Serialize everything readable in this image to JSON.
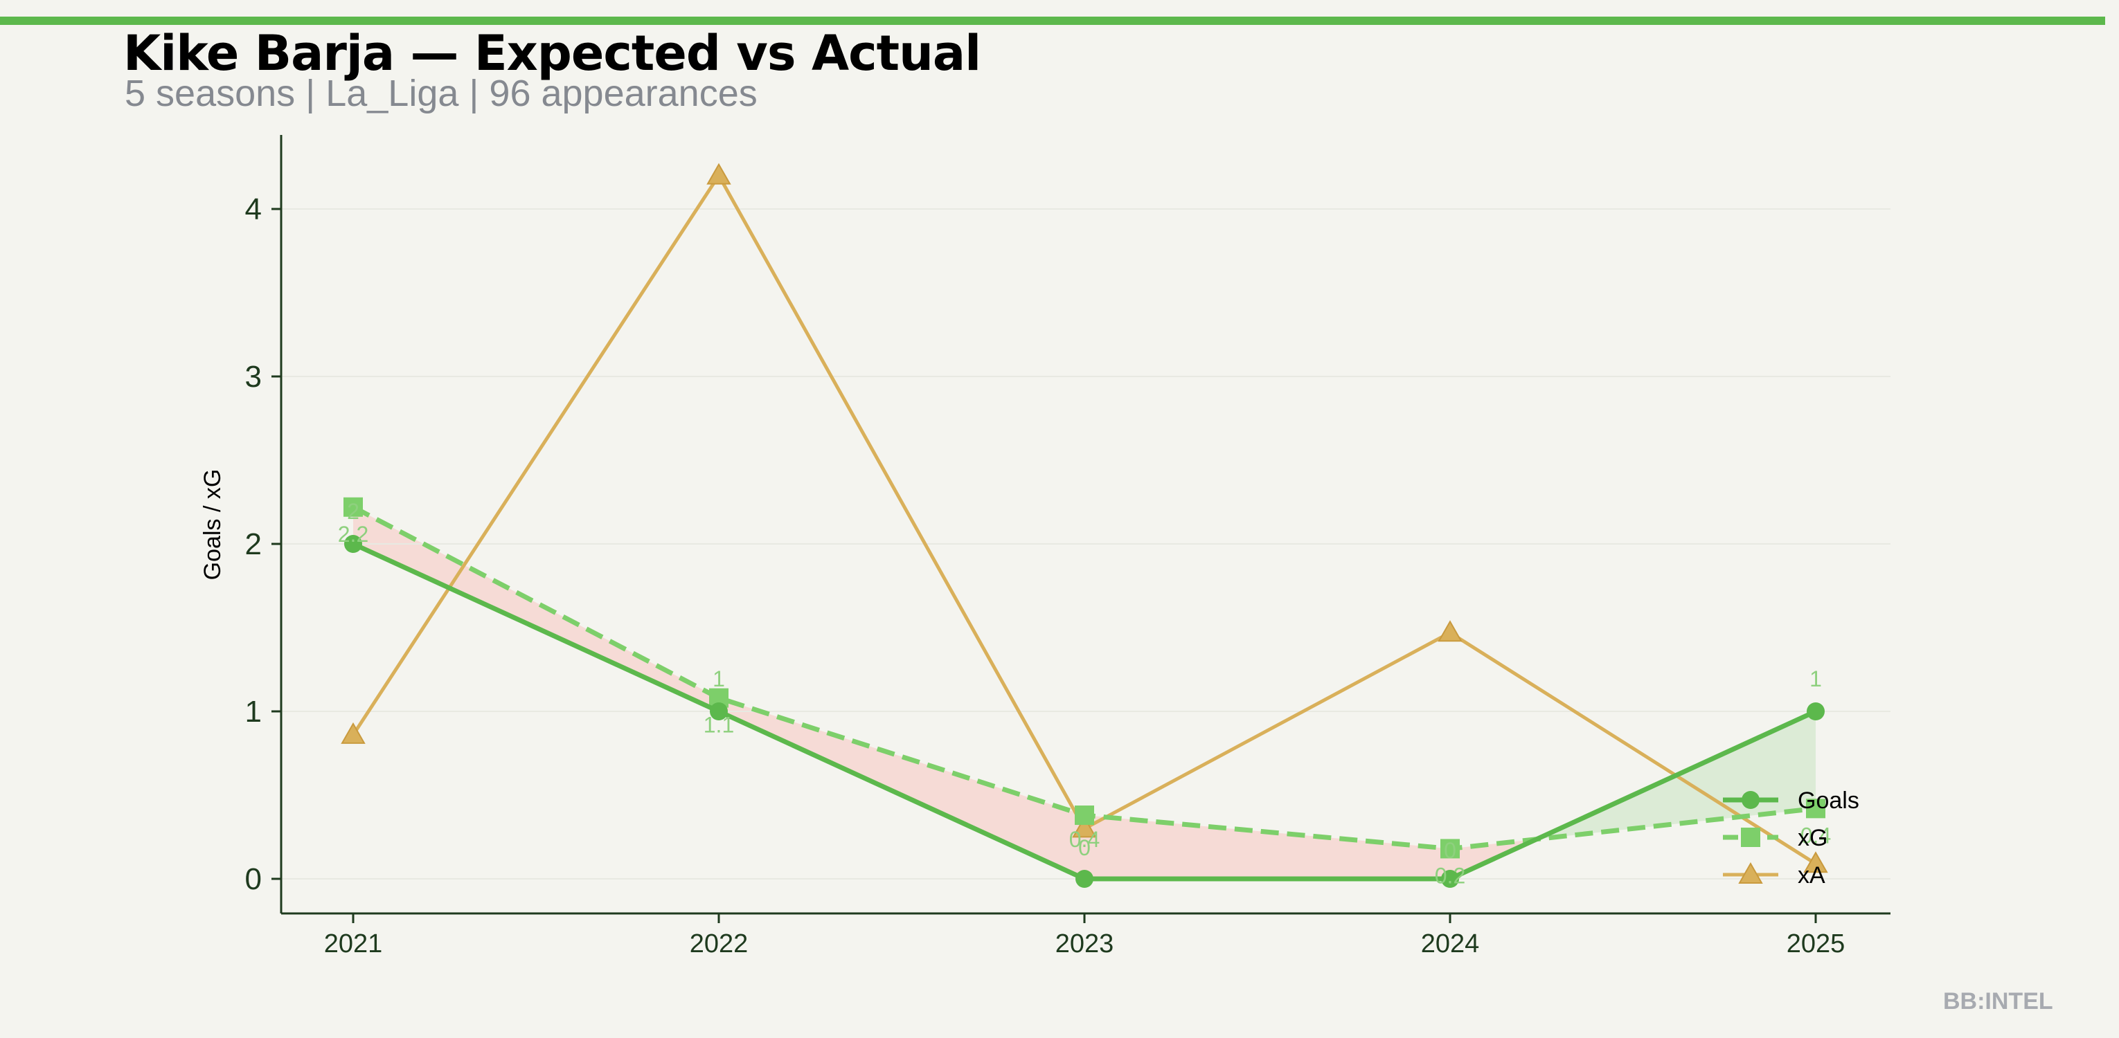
{
  "header": {
    "title": "Kike Barja — Expected vs Actual",
    "subtitle": "5 seasons | La_Liga | 96 appearances"
  },
  "watermark": "BB:INTEL",
  "colors": {
    "goals": "#5cb84c",
    "xg": "#7dcf6a",
    "xa": "#d9b05a",
    "underperform_fill": "#f5d9d4",
    "overperform_fill": "#d9ead3",
    "axis": "#1e3a1e"
  },
  "chart_data": {
    "type": "line",
    "title": "Kike Barja — Expected vs Actual",
    "subtitle": "5 seasons | La_Liga | 96 appearances",
    "xlabel": "",
    "ylabel": "Goals / xG",
    "categories": [
      "2021",
      "2022",
      "2023",
      "2024",
      "2025"
    ],
    "ylim": [
      -0.2,
      4.4
    ],
    "yticks": [
      "0",
      "1",
      "2",
      "3",
      "4"
    ],
    "series": [
      {
        "name": "Goals",
        "values": [
          2,
          1,
          0,
          0,
          1
        ],
        "marker": "circle",
        "style": "solid",
        "labels": [
          "2",
          "1",
          "0",
          "0",
          "1"
        ]
      },
      {
        "name": "xG",
        "values": [
          2.22,
          1.08,
          0.38,
          0.18,
          0.42
        ],
        "marker": "square",
        "style": "dashed",
        "labels": [
          "2.2",
          "1.1",
          "0.4",
          "0.2",
          "0.4"
        ]
      },
      {
        "name": "xA",
        "values": [
          0.86,
          4.2,
          0.3,
          1.47,
          0.09
        ],
        "marker": "triangle",
        "style": "solid"
      }
    ],
    "fill_between": "Goals vs xG (red where Goals < xG, green where Goals > xG)",
    "legend_position": "lower-right",
    "grid": false
  }
}
